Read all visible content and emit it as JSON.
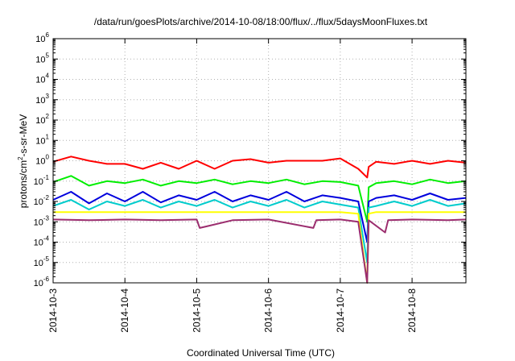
{
  "chart_data": {
    "type": "line",
    "title": "/data/run/goesPlots/archive/2014-10-08/18:00/flux/../flux/5daysMoonFluxes.txt",
    "xlabel": "Coordinated Universal Time (UTC)",
    "ylabel": {
      "prefix": "protons/cm",
      "sup": "2",
      "suffix": "-s-sr-MeV"
    },
    "xlim": [
      "2014-10-03",
      "2014-10-08 18:00"
    ],
    "ylim": [
      1e-06,
      1000000.0
    ],
    "yscale": "log",
    "grid": true,
    "legend": "none",
    "x_ticks": [
      "2014-10-3",
      "2014-10-4",
      "2014-10-5",
      "2014-10-6",
      "2014-10-7",
      "2014-10-8"
    ],
    "y_ticks": [
      {
        "base": "10",
        "exp": "-6"
      },
      {
        "base": "10",
        "exp": "-5"
      },
      {
        "base": "10",
        "exp": "-4"
      },
      {
        "base": "10",
        "exp": "-3"
      },
      {
        "base": "10",
        "exp": "-2"
      },
      {
        "base": "10",
        "exp": "-1"
      },
      {
        "base": "10",
        "exp": "0"
      },
      {
        "base": "10",
        "exp": "1"
      },
      {
        "base": "10",
        "exp": "2"
      },
      {
        "base": "10",
        "exp": "3"
      },
      {
        "base": "10",
        "exp": "4"
      },
      {
        "base": "10",
        "exp": "5"
      },
      {
        "base": "10",
        "exp": "6"
      }
    ],
    "series": [
      {
        "color": "#ff0000",
        "x": [
          "2014-10-03 00:00",
          "2014-10-03 06:00",
          "2014-10-03 12:00",
          "2014-10-03 18:00",
          "2014-10-04 00:00",
          "2014-10-04 06:00",
          "2014-10-04 12:00",
          "2014-10-04 18:00",
          "2014-10-05 00:00",
          "2014-10-05 06:00",
          "2014-10-05 12:00",
          "2014-10-05 18:00",
          "2014-10-06 00:00",
          "2014-10-06 06:00",
          "2014-10-06 12:00",
          "2014-10-06 18:00",
          "2014-10-07 00:00",
          "2014-10-07 06:00",
          "2014-10-07 09:00",
          "2014-10-07 09:30",
          "2014-10-07 12:00",
          "2014-10-07 18:00",
          "2014-10-08 00:00",
          "2014-10-08 06:00",
          "2014-10-08 12:00",
          "2014-10-08 18:00"
        ],
        "values": [
          0.9,
          1.6,
          1.0,
          0.7,
          0.7,
          0.4,
          0.8,
          0.4,
          1.0,
          0.4,
          1.0,
          1.2,
          0.8,
          1.0,
          1.0,
          1.0,
          1.3,
          0.4,
          0.15,
          0.5,
          0.9,
          0.7,
          1.0,
          0.7,
          1.0,
          0.8
        ]
      },
      {
        "color": "#00ee00",
        "x": [
          "2014-10-03 00:00",
          "2014-10-03 06:00",
          "2014-10-03 12:00",
          "2014-10-03 18:00",
          "2014-10-04 00:00",
          "2014-10-04 06:00",
          "2014-10-04 12:00",
          "2014-10-04 18:00",
          "2014-10-05 00:00",
          "2014-10-05 06:00",
          "2014-10-05 12:00",
          "2014-10-05 18:00",
          "2014-10-06 00:00",
          "2014-10-06 06:00",
          "2014-10-06 12:00",
          "2014-10-06 18:00",
          "2014-10-07 00:00",
          "2014-10-07 06:00",
          "2014-10-07 09:00",
          "2014-10-07 09:30",
          "2014-10-07 12:00",
          "2014-10-07 18:00",
          "2014-10-08 00:00",
          "2014-10-08 06:00",
          "2014-10-08 12:00",
          "2014-10-08 18:00"
        ],
        "values": [
          0.09,
          0.18,
          0.06,
          0.1,
          0.08,
          0.12,
          0.06,
          0.1,
          0.08,
          0.12,
          0.07,
          0.1,
          0.08,
          0.12,
          0.07,
          0.1,
          0.09,
          0.06,
          0.001,
          0.05,
          0.08,
          0.1,
          0.07,
          0.12,
          0.08,
          0.1
        ]
      },
      {
        "color": "#0000dd",
        "x": [
          "2014-10-03 00:00",
          "2014-10-03 06:00",
          "2014-10-03 12:00",
          "2014-10-03 18:00",
          "2014-10-04 00:00",
          "2014-10-04 06:00",
          "2014-10-04 12:00",
          "2014-10-04 18:00",
          "2014-10-05 00:00",
          "2014-10-05 06:00",
          "2014-10-05 12:00",
          "2014-10-05 18:00",
          "2014-10-06 00:00",
          "2014-10-06 06:00",
          "2014-10-06 12:00",
          "2014-10-06 18:00",
          "2014-10-07 00:00",
          "2014-10-07 06:00",
          "2014-10-07 09:00",
          "2014-10-07 09:30",
          "2014-10-07 12:00",
          "2014-10-07 18:00",
          "2014-10-08 00:00",
          "2014-10-08 06:00",
          "2014-10-08 12:00",
          "2014-10-08 18:00"
        ],
        "values": [
          0.012,
          0.03,
          0.008,
          0.025,
          0.01,
          0.03,
          0.009,
          0.02,
          0.012,
          0.03,
          0.01,
          0.02,
          0.012,
          0.03,
          0.01,
          0.02,
          0.015,
          0.01,
          0.0001,
          0.01,
          0.015,
          0.02,
          0.012,
          0.025,
          0.012,
          0.015
        ]
      },
      {
        "color": "#00cccc",
        "x": [
          "2014-10-03 00:00",
          "2014-10-03 06:00",
          "2014-10-03 12:00",
          "2014-10-03 18:00",
          "2014-10-04 00:00",
          "2014-10-04 06:00",
          "2014-10-04 12:00",
          "2014-10-04 18:00",
          "2014-10-05 00:00",
          "2014-10-05 06:00",
          "2014-10-05 12:00",
          "2014-10-05 18:00",
          "2014-10-06 00:00",
          "2014-10-06 06:00",
          "2014-10-06 12:00",
          "2014-10-06 18:00",
          "2014-10-07 00:00",
          "2014-10-07 06:00",
          "2014-10-07 09:00",
          "2014-10-07 09:30",
          "2014-10-07 12:00",
          "2014-10-07 18:00",
          "2014-10-08 00:00",
          "2014-10-08 06:00",
          "2014-10-08 12:00",
          "2014-10-08 18:00"
        ],
        "values": [
          0.006,
          0.012,
          0.004,
          0.01,
          0.006,
          0.012,
          0.005,
          0.01,
          0.006,
          0.012,
          0.005,
          0.01,
          0.006,
          0.012,
          0.005,
          0.01,
          0.007,
          0.005,
          1e-05,
          0.005,
          0.006,
          0.01,
          0.006,
          0.012,
          0.006,
          0.008
        ]
      },
      {
        "color": "#ffff00",
        "x": [
          "2014-10-03 00:00",
          "2014-10-03 12:00",
          "2014-10-04 00:00",
          "2014-10-04 12:00",
          "2014-10-05 00:00",
          "2014-10-05 12:00",
          "2014-10-06 00:00",
          "2014-10-06 12:00",
          "2014-10-07 00:00",
          "2014-10-07 06:00",
          "2014-10-07 09:00",
          "2014-10-07 09:30",
          "2014-10-07 12:00",
          "2014-10-08 00:00",
          "2014-10-08 12:00",
          "2014-10-08 18:00"
        ],
        "values": [
          0.003,
          0.003,
          0.003,
          0.003,
          0.003,
          0.003,
          0.003,
          0.003,
          0.003,
          0.0025,
          1e-06,
          0.0025,
          0.003,
          0.003,
          0.003,
          0.003
        ]
      },
      {
        "color": "#9b2d6e",
        "x": [
          "2014-10-03 00:00",
          "2014-10-03 12:00",
          "2014-10-04 00:00",
          "2014-10-04 12:00",
          "2014-10-05 00:00",
          "2014-10-05 01:00",
          "2014-10-05 12:00",
          "2014-10-06 00:00",
          "2014-10-06 15:00",
          "2014-10-06 16:00",
          "2014-10-07 00:00",
          "2014-10-07 06:00",
          "2014-10-07 09:00",
          "2014-10-07 09:30",
          "2014-10-07 15:00",
          "2014-10-07 16:00",
          "2014-10-08 00:00",
          "2014-10-08 12:00",
          "2014-10-08 18:00"
        ],
        "values": [
          0.0013,
          0.0012,
          0.0013,
          0.0012,
          0.0013,
          0.0005,
          0.0012,
          0.0013,
          0.0005,
          0.0012,
          0.0013,
          0.001,
          1e-06,
          0.0012,
          0.0003,
          0.0012,
          0.0013,
          0.0012,
          0.0013
        ]
      }
    ]
  }
}
